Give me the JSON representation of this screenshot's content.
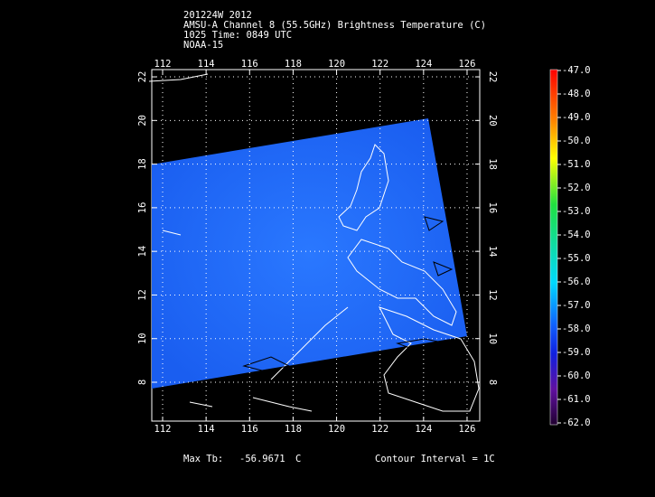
{
  "header": {
    "lines": [
      "201224W 2012",
      "AMSU-A Channel 8 (55.5GHz) Brightness Temperature (C)",
      "1025 Time: 0849 UTC",
      "NOAA-15"
    ]
  },
  "map": {
    "lon_ticks": [
      112,
      114,
      116,
      118,
      120,
      122,
      124,
      126
    ],
    "lat_ticks": [
      8,
      10,
      12,
      14,
      16,
      18,
      20,
      22
    ]
  },
  "colorbar": {
    "labels": [
      "-47.0",
      "-48.0",
      "-49.0",
      "-50.0",
      "-51.0",
      "-52.0",
      "-53.0",
      "-54.0",
      "-55.0",
      "-56.0",
      "-57.0",
      "-58.0",
      "-59.0",
      "-60.0",
      "-61.0",
      "-62.0"
    ]
  },
  "footer": {
    "max_label": "Max Tb:",
    "max_value": "-56.9671",
    "max_unit": "C",
    "contour": "Contour Interval = 1C"
  }
}
